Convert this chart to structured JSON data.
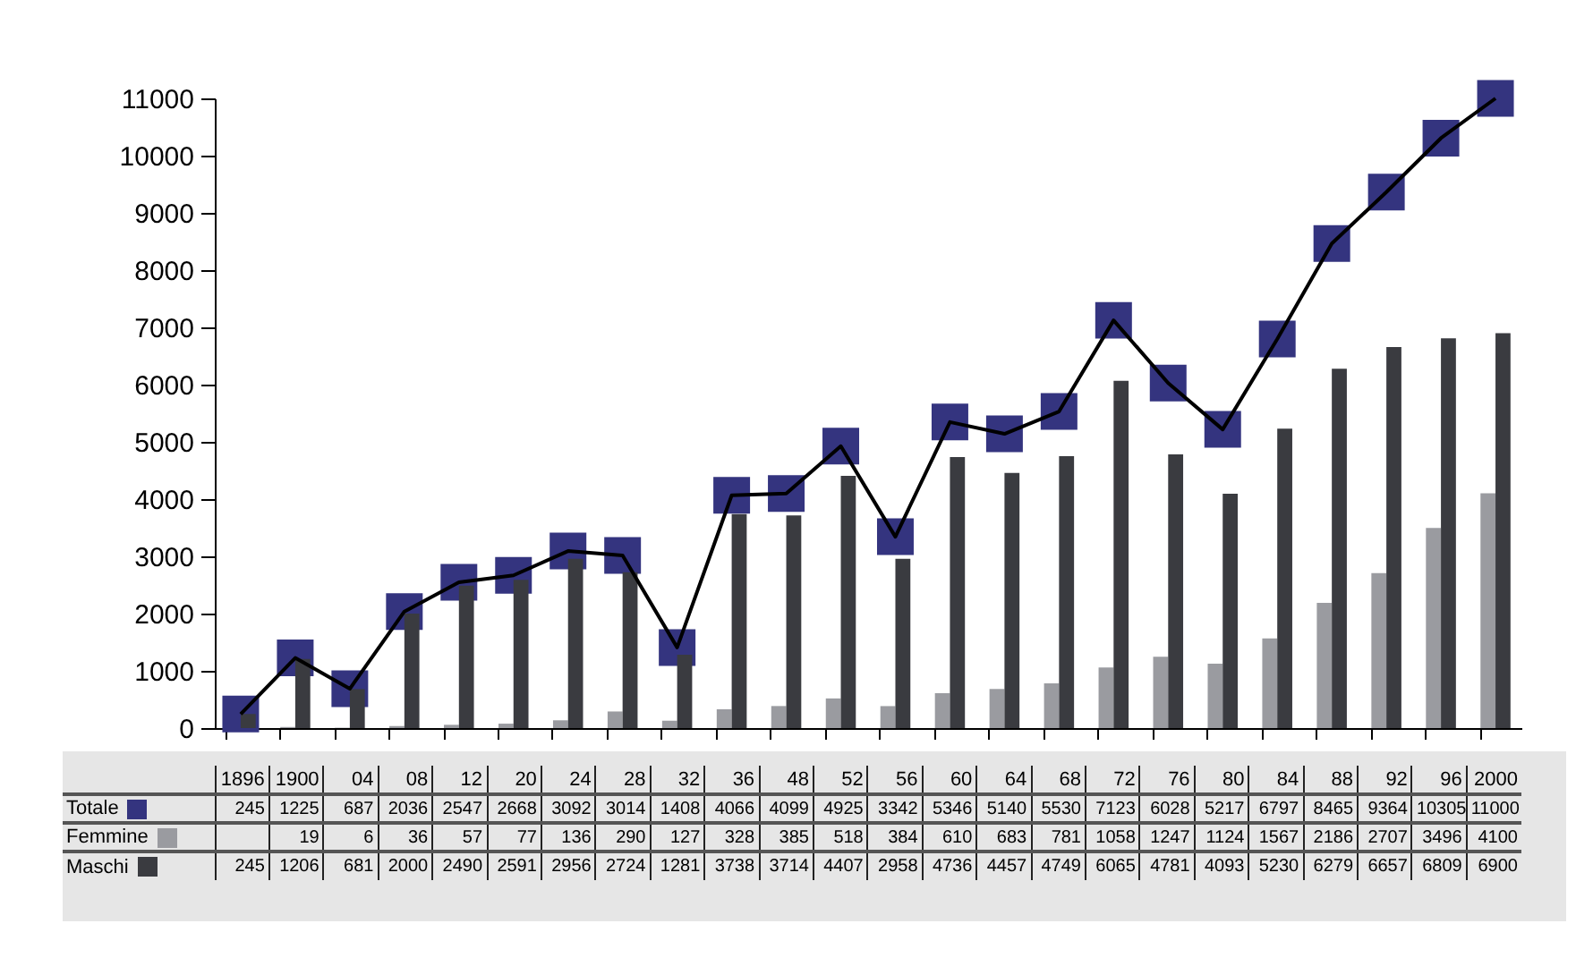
{
  "chart_data": {
    "type": "bar",
    "categories": [
      "1896",
      "1900",
      "04",
      "08",
      "12",
      "20",
      "24",
      "28",
      "32",
      "36",
      "48",
      "52",
      "56",
      "60",
      "64",
      "68",
      "72",
      "76",
      "80",
      "84",
      "88",
      "92",
      "96",
      "2000"
    ],
    "series": [
      {
        "name": "Totale",
        "type": "line",
        "color": "#34347f",
        "marker": "square",
        "line_style": "solid",
        "values": [
          245,
          1225,
          687,
          2036,
          2547,
          2668,
          3092,
          3014,
          1408,
          4066,
          4099,
          4925,
          3342,
          5346,
          5140,
          5530,
          7123,
          6028,
          5217,
          6797,
          8465,
          9364,
          10305,
          11000
        ]
      },
      {
        "name": "Femmine",
        "color": "#9a9ba0",
        "values": [
          null,
          19,
          6,
          36,
          57,
          77,
          136,
          290,
          127,
          328,
          385,
          518,
          384,
          610,
          683,
          781,
          1058,
          1247,
          1124,
          1567,
          2186,
          2707,
          3496,
          4100
        ]
      },
      {
        "name": "Maschi",
        "color": "#3a3b40",
        "values": [
          245,
          1206,
          681,
          2000,
          2490,
          2591,
          2956,
          2724,
          1281,
          3738,
          3714,
          4407,
          2958,
          4736,
          4457,
          4749,
          6065,
          4781,
          4093,
          5230,
          6279,
          6657,
          6809,
          6900
        ]
      }
    ],
    "ylim": [
      0,
      11000
    ],
    "yticks": [
      0,
      1000,
      2000,
      3000,
      4000,
      5000,
      6000,
      7000,
      8000,
      9000,
      10000,
      11000
    ],
    "grid": false,
    "legend": "bottom",
    "tick_labels": "y",
    "data_labels": true
  }
}
